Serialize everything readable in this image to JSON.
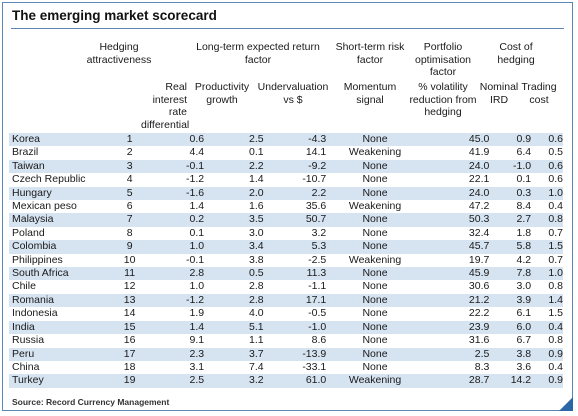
{
  "title": "The emerging market scorecard",
  "groups": {
    "hedging": "Hedging attractiveness",
    "long_term": "Long-term expected return factor",
    "short_term": "Short-term risk factor",
    "portfolio": "Portfolio optimisation factor",
    "cost": "Cost of hedging"
  },
  "subheaders": {
    "real_rate": "Real interest rate differential",
    "productivity": "Productivity growth",
    "undervaluation": "Undervaluation vs $",
    "momentum": "Momentum signal",
    "volatility": "% volatility reduction from hedging",
    "nominal_ird": "Nominal IRD",
    "trading_cost": "Trading cost"
  },
  "rows": [
    {
      "country": "Korea",
      "rank": "1",
      "real": "0.6",
      "prod": "2.5",
      "under": "-4.3",
      "mom": "None",
      "vol": "45.0",
      "ird": "0.9",
      "cost": "0.6"
    },
    {
      "country": "Brazil",
      "rank": "2",
      "real": "4.4",
      "prod": "0.1",
      "under": "14.1",
      "mom": "Weakening",
      "vol": "41.9",
      "ird": "6.4",
      "cost": "0.5"
    },
    {
      "country": "Taiwan",
      "rank": "3",
      "real": "-0.1",
      "prod": "2.2",
      "under": "-9.2",
      "mom": "None",
      "vol": "24.0",
      "ird": "-1.0",
      "cost": "0.6"
    },
    {
      "country": "Czech Republic",
      "rank": "4",
      "real": "-1.2",
      "prod": "1.4",
      "under": "-10.7",
      "mom": "None",
      "vol": "22.1",
      "ird": "0.1",
      "cost": "0.6"
    },
    {
      "country": "Hungary",
      "rank": "5",
      "real": "-1.6",
      "prod": "2.0",
      "under": "2.2",
      "mom": "None",
      "vol": "24.0",
      "ird": "0.3",
      "cost": "1.0"
    },
    {
      "country": "Mexican peso",
      "rank": "6",
      "real": "1.4",
      "prod": "1.6",
      "under": "35.6",
      "mom": "Weakening",
      "vol": "47.2",
      "ird": "8.4",
      "cost": "0.4"
    },
    {
      "country": "Malaysia",
      "rank": "7",
      "real": "0.2",
      "prod": "3.5",
      "under": "50.7",
      "mom": "None",
      "vol": "50.3",
      "ird": "2.7",
      "cost": "0.8"
    },
    {
      "country": "Poland",
      "rank": "8",
      "real": "0.1",
      "prod": "3.0",
      "under": "3.2",
      "mom": "None",
      "vol": "32.4",
      "ird": "1.8",
      "cost": "0.7"
    },
    {
      "country": "Colombia",
      "rank": "9",
      "real": "1.0",
      "prod": "3.4",
      "under": "5.3",
      "mom": "None",
      "vol": "45.7",
      "ird": "5.8",
      "cost": "1.5"
    },
    {
      "country": "Philippines",
      "rank": "10",
      "real": "-0.1",
      "prod": "3.8",
      "under": "-2.5",
      "mom": "Weakening",
      "vol": "19.7",
      "ird": "4.2",
      "cost": "0.7"
    },
    {
      "country": "South Africa",
      "rank": "11",
      "real": "2.8",
      "prod": "0.5",
      "under": "11.3",
      "mom": "None",
      "vol": "45.9",
      "ird": "7.8",
      "cost": "1.0"
    },
    {
      "country": "Chile",
      "rank": "12",
      "real": "1.0",
      "prod": "2.8",
      "under": "-1.1",
      "mom": "None",
      "vol": "30.6",
      "ird": "3.0",
      "cost": "0.8"
    },
    {
      "country": "Romania",
      "rank": "13",
      "real": "-1.2",
      "prod": "2.8",
      "under": "17.1",
      "mom": "None",
      "vol": "21.2",
      "ird": "3.9",
      "cost": "1.4"
    },
    {
      "country": "Indonesia",
      "rank": "14",
      "real": "1.9",
      "prod": "4.0",
      "under": "-0.5",
      "mom": "None",
      "vol": "22.2",
      "ird": "6.1",
      "cost": "1.5"
    },
    {
      "country": "India",
      "rank": "15",
      "real": "1.4",
      "prod": "5.1",
      "under": "-1.0",
      "mom": "None",
      "vol": "23.9",
      "ird": "6.0",
      "cost": "0.4"
    },
    {
      "country": "Russia",
      "rank": "16",
      "real": "9.1",
      "prod": "1.1",
      "under": "8.6",
      "mom": "None",
      "vol": "31.6",
      "ird": "6.7",
      "cost": "0.8"
    },
    {
      "country": "Peru",
      "rank": "17",
      "real": "2.3",
      "prod": "3.7",
      "under": "-13.9",
      "mom": "None",
      "vol": "2.5",
      "ird": "3.8",
      "cost": "0.9"
    },
    {
      "country": "China",
      "rank": "18",
      "real": "3.1",
      "prod": "7.4",
      "under": "-33.1",
      "mom": "None",
      "vol": "8.3",
      "ird": "3.6",
      "cost": "0.4"
    },
    {
      "country": "Turkey",
      "rank": "19",
      "real": "2.5",
      "prod": "3.2",
      "under": "61.0",
      "mom": "Weakening",
      "vol": "28.7",
      "ird": "14.2",
      "cost": "0.9"
    }
  ],
  "source": "Source: Record Currency Management",
  "colors": {
    "row_stripe": "#d6e3f1",
    "border": "#5a86b8",
    "corner": "#2b66a6"
  }
}
